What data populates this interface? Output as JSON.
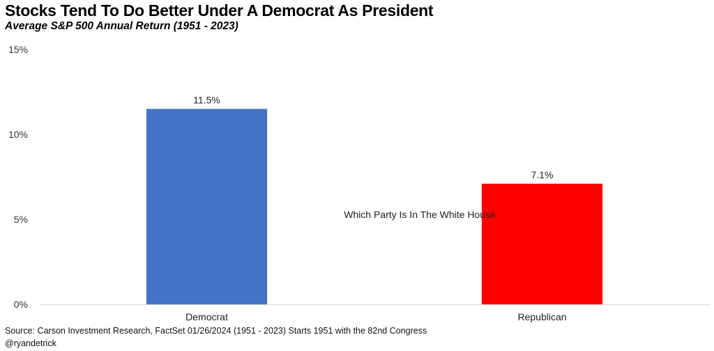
{
  "header": {
    "title": "Stocks Tend To Do Better Under A Democrat As President",
    "subtitle": "Average S&P 500 Annual Return (1951 - 2023)"
  },
  "footer": {
    "source": "Source: Carson Investment Research, FactSet 01/26/2024 (1951 - 2023) Starts 1951 with the 82nd Congress",
    "handle": "@ryandetrick"
  },
  "chart_data": {
    "type": "bar",
    "title": "Stocks Tend To Do Better Under A Democrat As President",
    "subtitle": "Average S&P 500 Annual Return (1951 - 2023)",
    "categories": [
      "Democrat",
      "Republican"
    ],
    "values": [
      11.5,
      7.1
    ],
    "data_labels": [
      "11.5%",
      "7.1%"
    ],
    "bar_colors": [
      "#4472C4",
      "#FF0000"
    ],
    "ylim": [
      0,
      15
    ],
    "yticks": [
      {
        "value": 0,
        "label": "0%"
      },
      {
        "value": 5,
        "label": "5%"
      },
      {
        "value": 10,
        "label": "10%"
      },
      {
        "value": 15,
        "label": "15%"
      }
    ],
    "annotation": "Which Party Is In The White House",
    "grid": false,
    "legend": "none"
  }
}
